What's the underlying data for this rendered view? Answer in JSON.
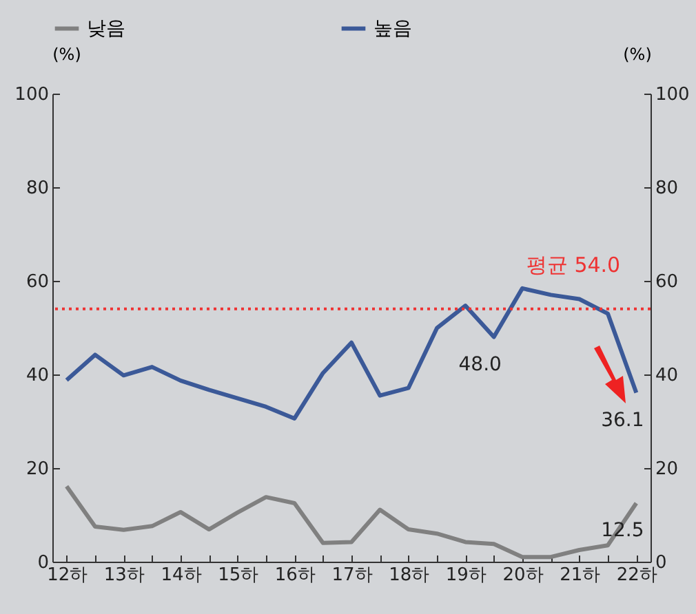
{
  "chart_data": {
    "type": "line",
    "categories": [
      "12하",
      null,
      "13하",
      null,
      "14하",
      null,
      "15하",
      null,
      "16하",
      null,
      "17하",
      null,
      "18하",
      null,
      "19하",
      null,
      "20하",
      null,
      "21하",
      null,
      "22하"
    ],
    "series": [
      {
        "name": "낮음",
        "color": "#808080",
        "values": [
          16.1,
          7.5,
          6.8,
          7.6,
          10.6,
          6.9,
          10.5,
          13.8,
          12.5,
          4.0,
          4.2,
          11.1,
          6.9,
          6.0,
          4.2,
          3.8,
          1.0,
          1.0,
          2.5,
          3.5,
          12.5
        ],
        "value_labels": [
          null,
          null,
          null,
          null,
          null,
          null,
          null,
          null,
          null,
          null,
          null,
          null,
          null,
          null,
          null,
          null,
          null,
          null,
          null,
          null,
          "12.5"
        ]
      },
      {
        "name": "높음",
        "color": "#3b5998",
        "values": [
          38.8,
          44.2,
          39.8,
          41.6,
          38.7,
          36.7,
          34.9,
          33.1,
          30.6,
          40.3,
          46.8,
          35.5,
          37.1,
          49.9,
          54.7,
          48.0,
          58.4,
          57.0,
          56.1,
          53.0,
          36.1
        ],
        "value_labels": [
          null,
          null,
          null,
          null,
          null,
          null,
          null,
          null,
          null,
          null,
          null,
          null,
          null,
          null,
          null,
          "48.0",
          null,
          null,
          null,
          null,
          "36.1"
        ]
      }
    ],
    "ylabel": "(%)",
    "y2label": "(%)",
    "ylim": [
      0,
      100
    ],
    "yticks": [
      0,
      20,
      40,
      60,
      80,
      100
    ],
    "y2lim": [
      0,
      100
    ],
    "y2ticks": [
      0,
      20,
      40,
      60,
      80,
      100
    ],
    "ref_lines": [
      {
        "axis": "y",
        "value": 54.0,
        "label": "평균 54.0",
        "color": "#ee3333",
        "line_style": "dotted"
      }
    ],
    "legend": "top",
    "grid": false
  }
}
